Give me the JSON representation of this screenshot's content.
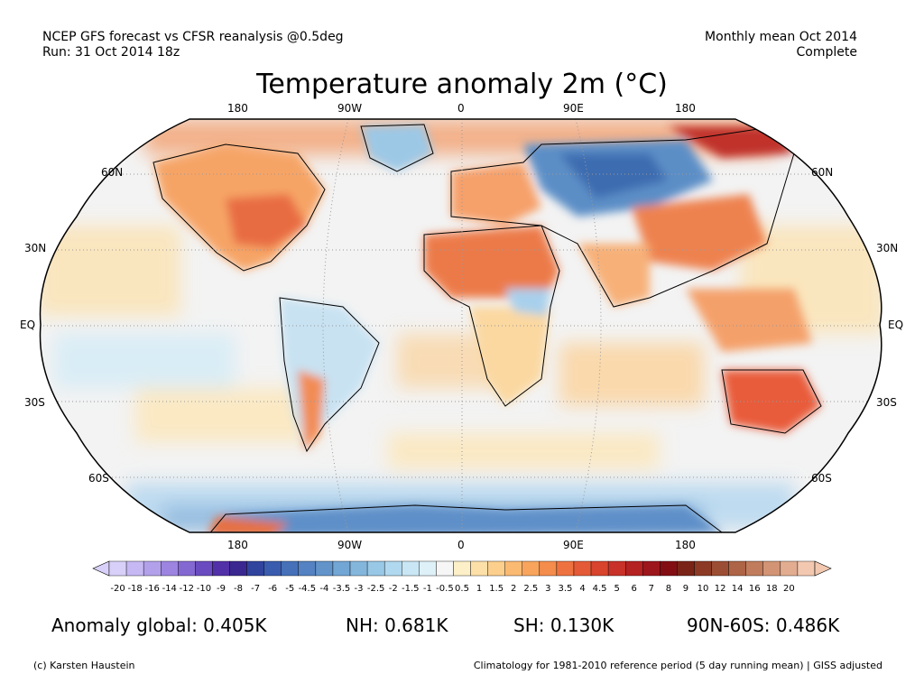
{
  "header": {
    "left_line1": "NCEP GFS forecast vs CFSR reanalysis @0.5deg",
    "left_line2": "Run: 31 Oct 2014 18z",
    "right_line1": "Monthly mean Oct 2014",
    "right_line2": "Complete"
  },
  "title": "Temperature anomaly 2m (°C)",
  "map": {
    "top_lon_labels": [
      "180",
      "90W",
      "0",
      "90E",
      "180"
    ],
    "bottom_lon_labels": [
      "180",
      "90W",
      "0",
      "90E",
      "180"
    ],
    "left_lat_labels": [
      "60N",
      "30N",
      "EQ",
      "30S",
      "60S"
    ],
    "right_lat_labels": [
      "60N",
      "30N",
      "EQ",
      "30S",
      "60S"
    ],
    "projection": "Robinson",
    "ocean_background": "#f2f2f2",
    "land_outline": "#000000"
  },
  "colorbar": {
    "labels": [
      "-20",
      "-18",
      "-16",
      "-14",
      "-12",
      "-10",
      "-9",
      "-8",
      "-7",
      "-6",
      "-5",
      "-4.5",
      "-4",
      "-3.5",
      "-3",
      "-2.5",
      "-2",
      "-1.5",
      "-1",
      "-0.5",
      "0.5",
      "1",
      "1.5",
      "2",
      "2.5",
      "3",
      "3.5",
      "4",
      "4.5",
      "5",
      "6",
      "7",
      "8",
      "9",
      "10",
      "12",
      "14",
      "16",
      "18",
      "20"
    ],
    "colors": [
      "#d8d0f8",
      "#c6b8f2",
      "#b2a0ea",
      "#9c84e0",
      "#8468d2",
      "#6a4cc0",
      "#5230a8",
      "#3a2890",
      "#30449e",
      "#3a5cae",
      "#4670b8",
      "#5482c2",
      "#6294ca",
      "#72a6d4",
      "#84b6dc",
      "#98c8e6",
      "#b0d8ee",
      "#c8e6f4",
      "#def0f8",
      "#f6f6f6",
      "#fdf0c8",
      "#fde0a8",
      "#fccf8c",
      "#fbba72",
      "#f8a45c",
      "#f48c4c",
      "#ee7240",
      "#e45a36",
      "#d8442e",
      "#c83228",
      "#b42222",
      "#9c161c",
      "#820e14",
      "#7a2418",
      "#8c3a26",
      "#9c4e34",
      "#ae6446",
      "#c07c5c",
      "#d29474",
      "#e2ac90",
      "#f2c8b0"
    ]
  },
  "stats": {
    "global": "Anomaly global: 0.405K",
    "nh": "NH: 0.681K",
    "sh": "SH: 0.130K",
    "arctic": "90N-60S: 0.486K"
  },
  "footer": {
    "credit": "(c) Karsten Haustein",
    "note": "Climatology for 1981-2010 reference period (5 day running mean) | GISS adjusted"
  }
}
